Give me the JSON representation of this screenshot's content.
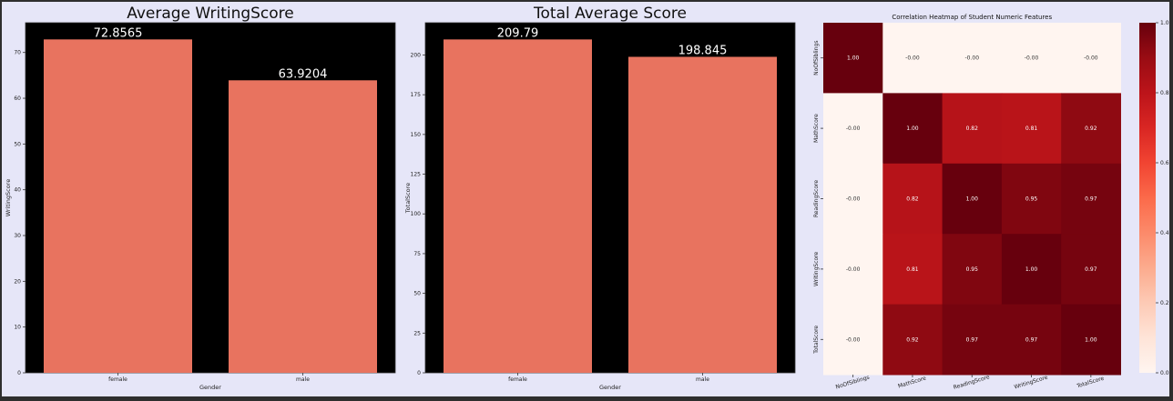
{
  "chart_data": [
    {
      "type": "bar",
      "title": "Average WritingScore",
      "xlabel": "Gender",
      "ylabel": "WritingScore",
      "categories": [
        "female",
        "male"
      ],
      "values": [
        72.8565,
        63.9204
      ],
      "data_labels": [
        "72.8565",
        "63.9204"
      ],
      "ylim": [
        0,
        76.5
      ],
      "yticks": [
        0,
        10,
        20,
        30,
        40,
        50,
        60,
        70
      ],
      "bar_color": "#e8735f",
      "plot_bg": "#000000",
      "grid": false
    },
    {
      "type": "bar",
      "title": "Total Average Score",
      "xlabel": "Gender",
      "ylabel": "TotalScore",
      "categories": [
        "female",
        "male"
      ],
      "values": [
        209.79,
        198.845
      ],
      "data_labels": [
        "209.79",
        "198.845"
      ],
      "ylim": [
        0,
        220.3
      ],
      "yticks": [
        0,
        25,
        50,
        75,
        100,
        125,
        150,
        175,
        200
      ],
      "bar_color": "#e8735f",
      "plot_bg": "#000000",
      "grid": false
    },
    {
      "type": "heatmap",
      "title": "Correlation Heatmap of Student Numeric Features",
      "labels": [
        "NoOfSiblings",
        "MathScore",
        "ReadingScore",
        "WritingScore",
        "TotalScore"
      ],
      "matrix": [
        [
          1.0,
          -0.0,
          -0.0,
          -0.0,
          -0.0
        ],
        [
          -0.0,
          1.0,
          0.82,
          0.81,
          0.92
        ],
        [
          -0.0,
          0.82,
          1.0,
          0.95,
          0.97
        ],
        [
          -0.0,
          0.81,
          0.95,
          1.0,
          0.97
        ],
        [
          -0.0,
          0.92,
          0.97,
          0.97,
          1.0
        ]
      ],
      "annotations": [
        [
          "1.00",
          "-0.00",
          "-0.00",
          "-0.00",
          "-0.00"
        ],
        [
          "-0.00",
          "1.00",
          "0.82",
          "0.81",
          "0.92"
        ],
        [
          "-0.00",
          "0.82",
          "1.00",
          "0.95",
          "0.97"
        ],
        [
          "-0.00",
          "0.81",
          "0.95",
          "1.00",
          "0.97"
        ],
        [
          "-0.00",
          "0.92",
          "0.97",
          "0.97",
          "1.00"
        ]
      ],
      "colormap": "Reds",
      "colorbar_ticks": [
        "0.0",
        "0.2",
        "0.4",
        "0.6",
        "0.8",
        "1.0"
      ],
      "colorbar_range": [
        0,
        1
      ]
    }
  ]
}
